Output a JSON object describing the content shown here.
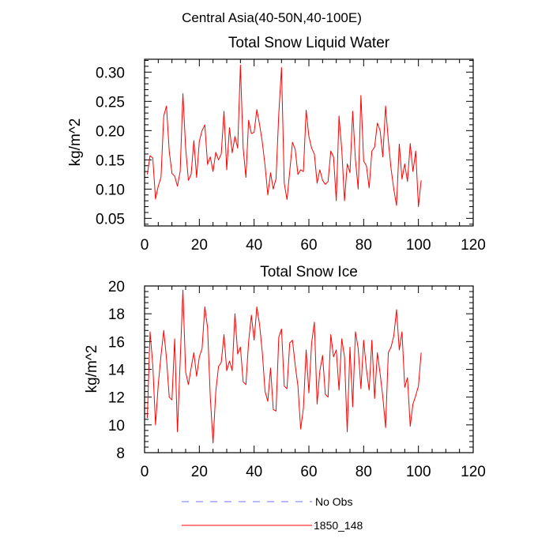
{
  "figure": {
    "suptitle": "Central Asia(40-50N,40-100E)"
  },
  "chart_data": [
    {
      "type": "line",
      "title": "Total Snow Liquid Water",
      "xlabel": "",
      "ylabel": "kg/m^2",
      "xlim": [
        0,
        120
      ],
      "ylim": [
        0.037,
        0.322
      ],
      "x_ticks": [
        0,
        20,
        40,
        60,
        80,
        100,
        120
      ],
      "y_ticks": [
        0.05,
        0.1,
        0.15,
        0.2,
        0.25,
        0.3
      ],
      "y_tick_labels": [
        "0.05",
        "0.10",
        "0.15",
        "0.20",
        "0.25",
        "0.30"
      ],
      "x_tick_labels": [
        "0",
        "20",
        "40",
        "60",
        "80",
        "100",
        "120"
      ],
      "grid": false,
      "series": [
        {
          "name": "1850_148",
          "color": "#ff0000",
          "x": [
            1,
            2,
            3,
            4,
            5,
            6,
            7,
            8,
            9,
            10,
            11,
            12,
            13,
            14,
            15,
            16,
            17,
            18,
            19,
            20,
            21,
            22,
            23,
            24,
            25,
            26,
            27,
            28,
            29,
            30,
            31,
            32,
            33,
            34,
            35,
            36,
            37,
            38,
            39,
            40,
            41,
            42,
            43,
            44,
            45,
            46,
            47,
            48,
            49,
            50,
            51,
            52,
            53,
            54,
            55,
            56,
            57,
            58,
            59,
            60,
            61,
            62,
            63,
            64,
            65,
            66,
            67,
            68,
            69,
            70,
            71,
            72,
            73,
            74,
            75,
            76,
            77,
            78,
            79,
            80,
            81,
            82,
            83,
            84,
            85,
            86,
            87,
            88,
            89,
            90,
            91,
            92,
            93,
            94,
            95,
            96,
            97,
            98,
            99,
            100,
            101
          ],
          "values": [
            0.125,
            0.157,
            0.153,
            0.083,
            0.105,
            0.12,
            0.225,
            0.242,
            0.165,
            0.127,
            0.122,
            0.105,
            0.13,
            0.263,
            0.17,
            0.115,
            0.125,
            0.183,
            0.12,
            0.182,
            0.2,
            0.21,
            0.142,
            0.155,
            0.13,
            0.163,
            0.15,
            0.16,
            0.233,
            0.133,
            0.205,
            0.162,
            0.19,
            0.17,
            0.312,
            0.17,
            0.12,
            0.218,
            0.195,
            0.197,
            0.236,
            0.21,
            0.18,
            0.14,
            0.09,
            0.128,
            0.1,
            0.118,
            0.228,
            0.308,
            0.11,
            0.082,
            0.13,
            0.18,
            0.168,
            0.125,
            0.133,
            0.13,
            0.235,
            0.19,
            0.17,
            0.16,
            0.11,
            0.133,
            0.115,
            0.108,
            0.113,
            0.165,
            0.155,
            0.08,
            0.225,
            0.168,
            0.08,
            0.143,
            0.128,
            0.233,
            0.15,
            0.1,
            0.26,
            0.148,
            0.14,
            0.102,
            0.165,
            0.172,
            0.213,
            0.2,
            0.155,
            0.242,
            0.183,
            0.135,
            0.1,
            0.072,
            0.177,
            0.117,
            0.143,
            0.113,
            0.178,
            0.13,
            0.165,
            0.07,
            0.115
          ]
        }
      ]
    },
    {
      "type": "line",
      "title": "Total Snow Ice",
      "xlabel": "",
      "ylabel": "kg/m^2",
      "xlim": [
        0,
        120
      ],
      "ylim": [
        8,
        20
      ],
      "x_ticks": [
        0,
        20,
        40,
        60,
        80,
        100,
        120
      ],
      "y_ticks": [
        8,
        10,
        12,
        14,
        16,
        18,
        20
      ],
      "y_tick_labels": [
        "8",
        "10",
        "12",
        "14",
        "16",
        "18",
        "20"
      ],
      "x_tick_labels": [
        "0",
        "20",
        "40",
        "60",
        "80",
        "100",
        "120"
      ],
      "grid": false,
      "series": [
        {
          "name": "1850_148",
          "color": "#ff0000",
          "x": [
            1,
            2,
            3,
            4,
            5,
            6,
            7,
            8,
            9,
            10,
            11,
            12,
            13,
            14,
            15,
            16,
            17,
            18,
            19,
            20,
            21,
            22,
            23,
            24,
            25,
            26,
            27,
            28,
            29,
            30,
            31,
            32,
            33,
            34,
            35,
            36,
            37,
            38,
            39,
            40,
            41,
            42,
            43,
            44,
            45,
            46,
            47,
            48,
            49,
            50,
            51,
            52,
            53,
            54,
            55,
            56,
            57,
            58,
            59,
            60,
            61,
            62,
            63,
            64,
            65,
            66,
            67,
            68,
            69,
            70,
            71,
            72,
            73,
            74,
            75,
            76,
            77,
            78,
            79,
            80,
            81,
            82,
            83,
            84,
            85,
            86,
            87,
            88,
            89,
            90,
            91,
            92,
            93,
            94,
            95,
            96,
            97,
            98,
            99,
            100,
            101
          ],
          "values": [
            10.5,
            16.7,
            14.3,
            10.0,
            12.9,
            15.0,
            16.8,
            14.8,
            12.0,
            11.8,
            16.2,
            9.5,
            14.6,
            19.7,
            13.8,
            12.9,
            14.1,
            15.2,
            13.5,
            14.9,
            15.5,
            18.5,
            17.0,
            12.0,
            8.7,
            12.4,
            14.2,
            14.5,
            16.5,
            13.9,
            14.6,
            13.9,
            18.0,
            15.1,
            15.6,
            13.1,
            12.9,
            16.0,
            17.9,
            16.1,
            18.5,
            17.2,
            15.2,
            12.4,
            11.7,
            14.1,
            11.1,
            11.0,
            16.3,
            16.9,
            12.8,
            12.6,
            15.9,
            16.1,
            14.3,
            12.8,
            9.7,
            11.2,
            15.4,
            12.3,
            15.9,
            17.4,
            11.5,
            13.9,
            15.0,
            12.2,
            12.0,
            16.5,
            14.9,
            15.4,
            12.5,
            16.2,
            14.9,
            9.5,
            15.6,
            11.3,
            16.7,
            15.5,
            12.6,
            16.1,
            14.0,
            12.5,
            16.1,
            11.9,
            15.2,
            13.7,
            12.0,
            9.8,
            15.2,
            15.6,
            16.4,
            18.3,
            15.4,
            16.7,
            12.7,
            13.4,
            9.9,
            11.5,
            12.1,
            12.8,
            15.2
          ]
        }
      ]
    }
  ],
  "legend": {
    "placement": "bottom-center",
    "entries": [
      {
        "label": "No Obs",
        "color": "#7070ff",
        "style": "dashed"
      },
      {
        "label": "1850_148",
        "color": "#ff0000",
        "style": "solid"
      }
    ]
  }
}
